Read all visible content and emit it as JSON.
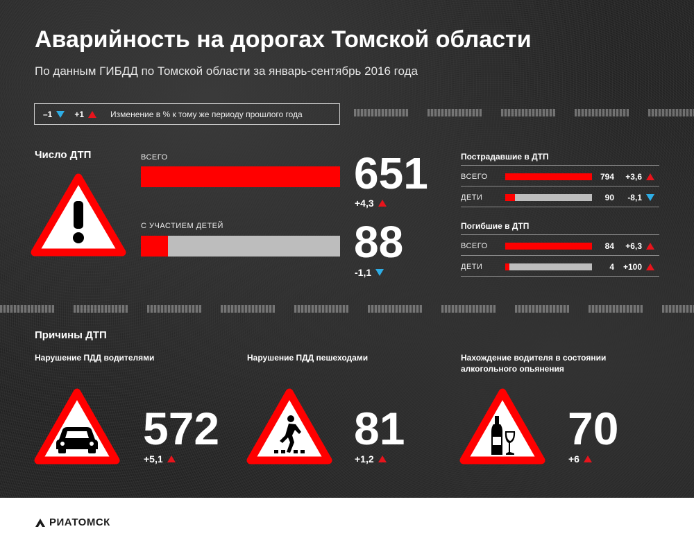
{
  "header": {
    "title": "Аварийность на дорогах Томской области",
    "subtitle": "По данным ГИБДД по Томской области за январь-сентябрь 2016 года"
  },
  "legend": {
    "minus": "–1",
    "plus": "+1",
    "text": "Изменение в % к тому же периоду прошлого года"
  },
  "colors": {
    "accent": "#ff0000",
    "up": "#e8141c",
    "down": "#2eaee6",
    "bar_bg": "#bdbdbd"
  },
  "icons": [
    "warning-exclamation-icon",
    "car-icon",
    "pedestrian-icon",
    "wine-bottle-glass-icon"
  ],
  "chart_data": [
    {
      "type": "bar",
      "title": "Число ДТП",
      "categories": [
        "ВСЕГО",
        "С УЧАСТИЕМ ДЕТЕЙ"
      ],
      "values": [
        651,
        88
      ],
      "value_labels": [
        "651",
        "88"
      ],
      "changes": [
        "+4,3",
        "-1,1"
      ],
      "directions": [
        "up",
        "down"
      ],
      "xlim": [
        0,
        651
      ]
    },
    {
      "type": "bar",
      "title": "Пострадавшие в ДТП",
      "categories": [
        "ВСЕГО",
        "ДЕТИ"
      ],
      "values": [
        794,
        90
      ],
      "value_labels": [
        "794",
        "90"
      ],
      "changes": [
        "+3,6",
        "-8,1"
      ],
      "directions": [
        "up",
        "down"
      ],
      "xlim": [
        0,
        794
      ]
    },
    {
      "type": "bar",
      "title": "Погибшие в ДТП",
      "categories": [
        "ВСЕГО",
        "ДЕТИ"
      ],
      "values": [
        84,
        4
      ],
      "value_labels": [
        "84",
        "4"
      ],
      "changes": [
        "+6,3",
        "+100"
      ],
      "directions": [
        "up",
        "up"
      ],
      "xlim": [
        0,
        84
      ]
    }
  ],
  "causes": {
    "title": "Причины ДТП",
    "items": [
      {
        "label": "Нарушение ПДД водителями",
        "value": "572",
        "change": "+5,1",
        "direction": "up",
        "icon": "car-icon"
      },
      {
        "label": "Нарушение ПДД пешеходами",
        "value": "81",
        "change": "+1,2",
        "direction": "up",
        "icon": "pedestrian-icon"
      },
      {
        "label": "Нахождение водителя в состоянии алкогольного опьянения",
        "value": "70",
        "change": "+6",
        "direction": "up",
        "icon": "wine-bottle-glass-icon"
      }
    ]
  },
  "footer": {
    "logo": "РИАТОМСК"
  }
}
